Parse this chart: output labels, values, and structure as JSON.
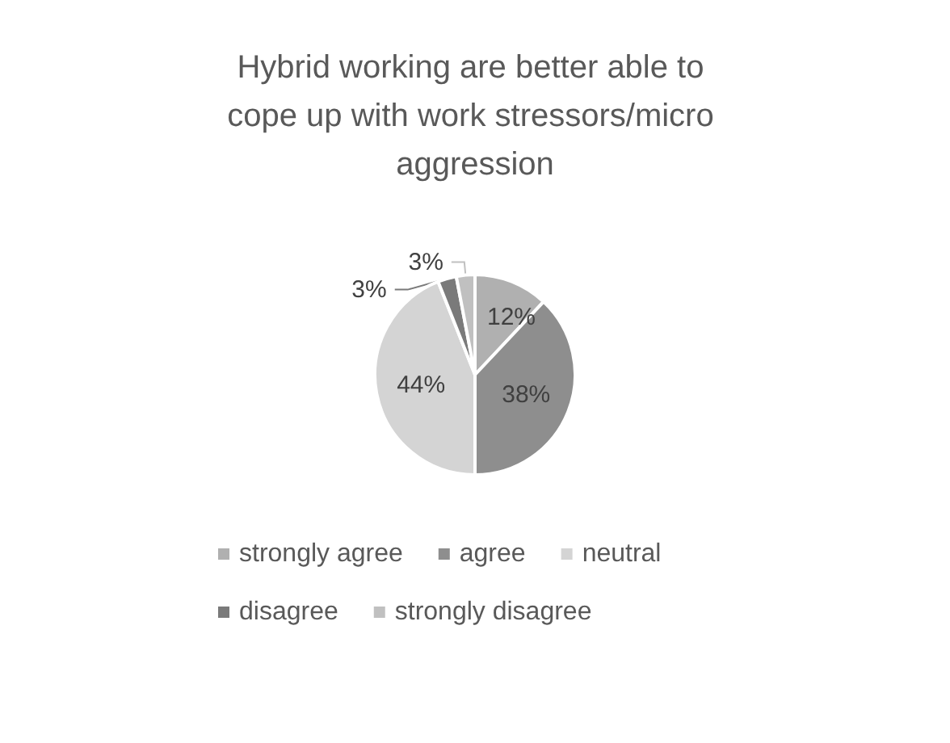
{
  "chart_data": {
    "type": "pie",
    "title": "Hybrid working are better able to cope up with work stressors/micro aggression",
    "categories": [
      "strongly agree",
      "agree",
      "neutral",
      "disagree",
      "strongly disagree"
    ],
    "values": [
      12,
      38,
      44,
      3,
      3
    ],
    "colors": [
      "#b0b0b0",
      "#8e8e8e",
      "#d4d4d4",
      "#7a7a7a",
      "#c0c0c0"
    ],
    "value_labels": [
      "12%",
      "38%",
      "44%",
      "3%",
      "3%"
    ],
    "legend": "bottom"
  }
}
